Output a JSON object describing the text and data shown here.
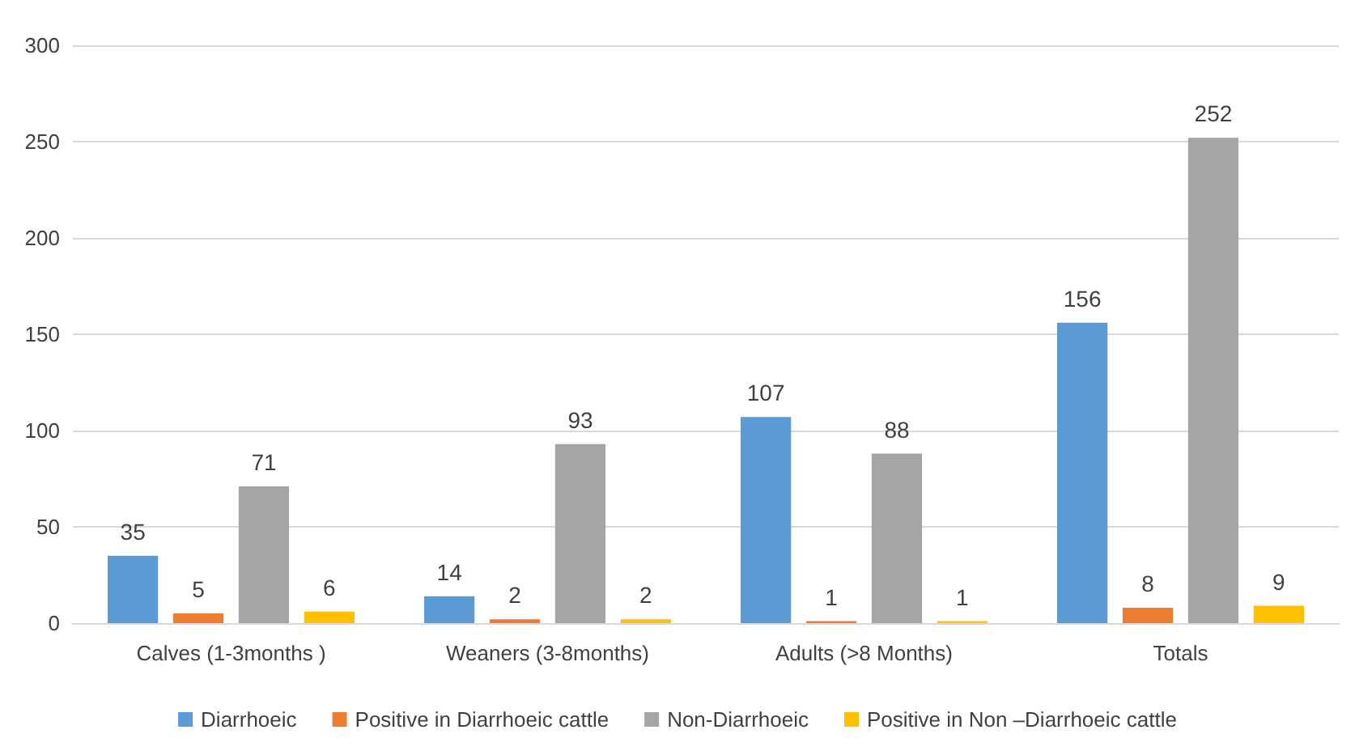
{
  "chart_data": {
    "type": "bar",
    "categories": [
      "Calves (1-3months )",
      "Weaners (3-8months)",
      "Adults (>8 Months)",
      "Totals"
    ],
    "series": [
      {
        "name": "Diarrhoeic",
        "color": "#5b9bd5",
        "values": [
          35,
          14,
          107,
          156
        ]
      },
      {
        "name": "Positive in Diarrhoeic cattle",
        "color": "#ed7d31",
        "values": [
          5,
          2,
          1,
          8
        ]
      },
      {
        "name": "Non-Diarrhoeic",
        "color": "#a5a5a5",
        "values": [
          71,
          93,
          88,
          252
        ]
      },
      {
        "name": "Positive in Non –Diarrhoeic cattle",
        "color": "#ffc000",
        "values": [
          6,
          2,
          1,
          9
        ]
      }
    ],
    "ylim": [
      0,
      300
    ],
    "yticks": [
      0,
      50,
      100,
      150,
      200,
      250,
      300
    ],
    "grid": "y",
    "legend": "bottom",
    "data_labels": true
  }
}
